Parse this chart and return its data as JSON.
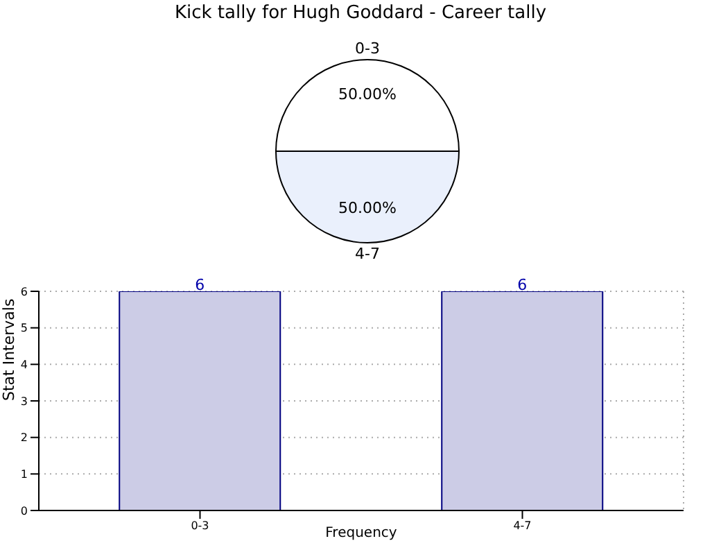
{
  "chart_data": [
    {
      "type": "pie",
      "title": "Kick tally for Hugh Goddard - Career tally",
      "categories": [
        "0-3",
        "4-7"
      ],
      "values": [
        50,
        50
      ],
      "value_labels": [
        "50.00%",
        "50.00%"
      ],
      "colors": [
        "#ffffff",
        "#eaf0fc"
      ]
    },
    {
      "type": "bar",
      "categories": [
        "0-3",
        "4-7"
      ],
      "values": [
        6,
        6
      ],
      "color": "#ccccE6",
      "xlabel": "Frequency",
      "ylabel": "Stat Intervals",
      "ylim": [
        0,
        6
      ],
      "yticks": [
        0,
        1,
        2,
        3,
        4,
        5,
        6
      ],
      "grid": true,
      "data_labels": true
    }
  ]
}
